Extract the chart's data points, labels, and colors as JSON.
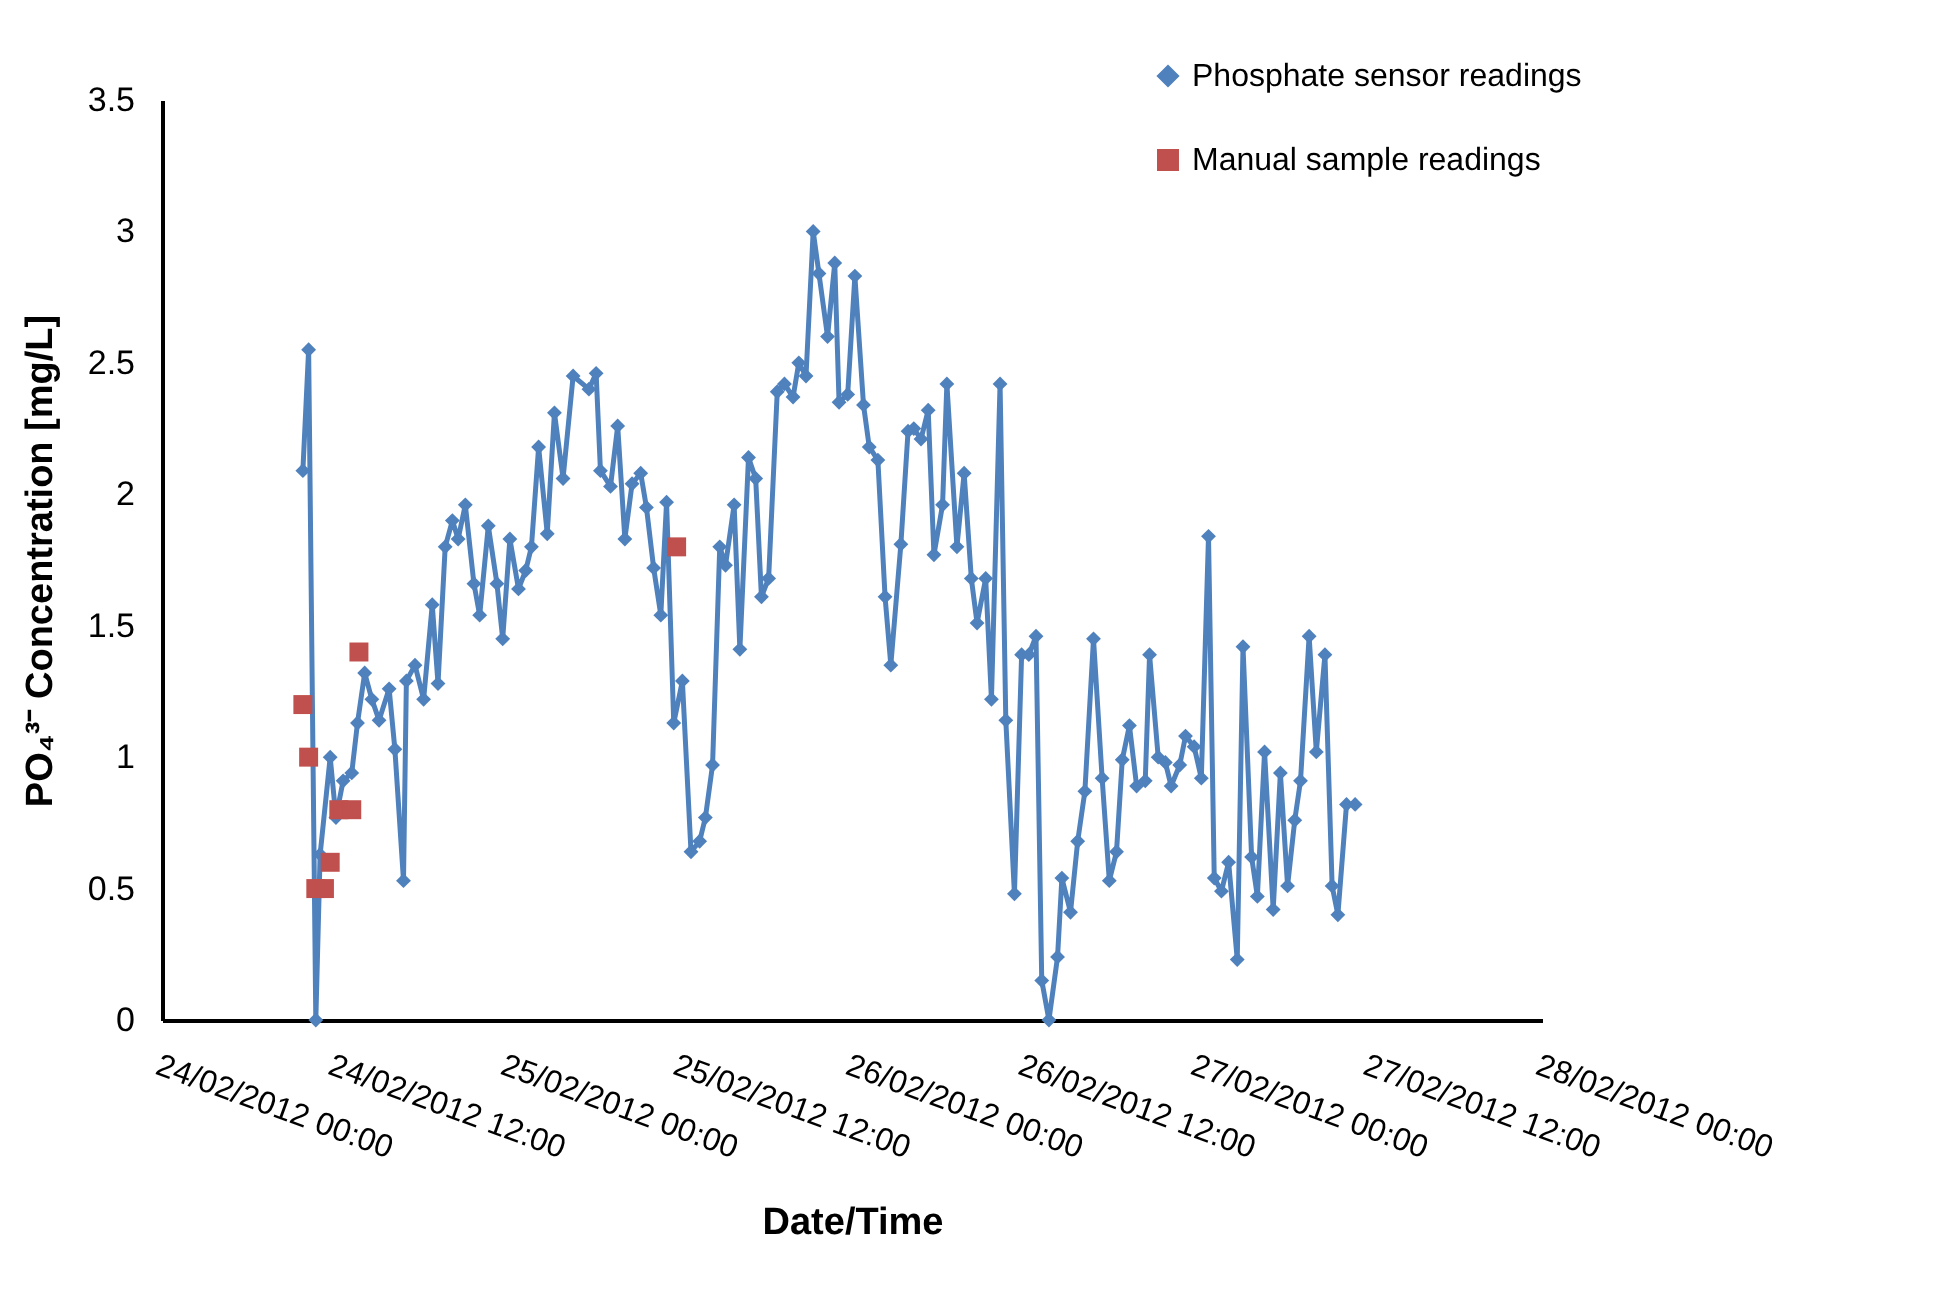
{
  "chart_data": {
    "type": "line",
    "xlabel": "Date/Time",
    "ylabel": "PO₄³⁻ Concentration [mg/L]",
    "xlim": [
      "2012-02-24T00:00",
      "2012-02-28T00:00"
    ],
    "xticks": [
      {
        "value": "2012-02-24T00:00",
        "label": "24/02/2012 00:00"
      },
      {
        "value": "2012-02-24T12:00",
        "label": "24/02/2012 12:00"
      },
      {
        "value": "2012-02-25T00:00",
        "label": "25/02/2012 00:00"
      },
      {
        "value": "2012-02-25T12:00",
        "label": "25/02/2012 12:00"
      },
      {
        "value": "2012-02-26T00:00",
        "label": "26/02/2012 00:00"
      },
      {
        "value": "2012-02-26T12:00",
        "label": "26/02/2012 12:00"
      },
      {
        "value": "2012-02-27T00:00",
        "label": "27/02/2012 00:00"
      },
      {
        "value": "2012-02-27T12:00",
        "label": "27/02/2012 12:00"
      },
      {
        "value": "2012-02-28T00:00",
        "label": "28/02/2012 00:00"
      }
    ],
    "ylim": [
      0,
      3.5
    ],
    "yticks": [
      0,
      0.5,
      1,
      1.5,
      2,
      2.5,
      3,
      3.5
    ],
    "grid": false,
    "legend": "top right",
    "series": [
      {
        "name": "Phosphate sensor readings",
        "marker": "diamond",
        "line_style": "solid",
        "color": "#4f81bd",
        "x": [
          "2012-02-24T09:48",
          "2012-02-24T10:12",
          "2012-02-24T10:42",
          "2012-02-24T11:00",
          "2012-02-24T11:42",
          "2012-02-24T12:06",
          "2012-02-24T12:36",
          "2012-02-24T13:12",
          "2012-02-24T13:36",
          "2012-02-24T14:06",
          "2012-02-24T14:36",
          "2012-02-24T15:06",
          "2012-02-24T15:48",
          "2012-02-24T16:12",
          "2012-02-24T16:48",
          "2012-02-24T17:00",
          "2012-02-24T17:36",
          "2012-02-24T18:12",
          "2012-02-24T18:48",
          "2012-02-24T19:12",
          "2012-02-24T19:42",
          "2012-02-24T20:12",
          "2012-02-24T20:36",
          "2012-02-24T21:06",
          "2012-02-24T21:42",
          "2012-02-24T22:06",
          "2012-02-24T22:42",
          "2012-02-24T23:18",
          "2012-02-24T23:42",
          "2012-02-25T00:12",
          "2012-02-25T00:48",
          "2012-02-25T01:18",
          "2012-02-25T01:42",
          "2012-02-25T02:12",
          "2012-02-25T02:48",
          "2012-02-25T03:18",
          "2012-02-25T03:54",
          "2012-02-25T04:36",
          "2012-02-25T05:42",
          "2012-02-25T06:12",
          "2012-02-25T06:30",
          "2012-02-25T07:12",
          "2012-02-25T07:42",
          "2012-02-25T08:12",
          "2012-02-25T08:42",
          "2012-02-25T09:18",
          "2012-02-25T09:42",
          "2012-02-25T10:12",
          "2012-02-25T10:42",
          "2012-02-25T11:06",
          "2012-02-25T11:36",
          "2012-02-25T12:12",
          "2012-02-25T12:48",
          "2012-02-25T13:24",
          "2012-02-25T13:48",
          "2012-02-25T14:18",
          "2012-02-25T14:48",
          "2012-02-25T15:12",
          "2012-02-25T15:48",
          "2012-02-25T16:12",
          "2012-02-25T16:48",
          "2012-02-25T17:18",
          "2012-02-25T17:42",
          "2012-02-25T18:12",
          "2012-02-25T18:48",
          "2012-02-25T19:18",
          "2012-02-25T19:54",
          "2012-02-25T20:18",
          "2012-02-25T20:48",
          "2012-02-25T21:18",
          "2012-02-25T21:42",
          "2012-02-25T22:18",
          "2012-02-25T22:48",
          "2012-02-25T23:06",
          "2012-02-25T23:42",
          "2012-02-26T00:12",
          "2012-02-26T00:48",
          "2012-02-26T01:12",
          "2012-02-26T01:48",
          "2012-02-26T02:18",
          "2012-02-26T02:42",
          "2012-02-26T03:24",
          "2012-02-26T03:54",
          "2012-02-26T04:18",
          "2012-02-26T04:48",
          "2012-02-26T05:18",
          "2012-02-26T05:42",
          "2012-02-26T06:18",
          "2012-02-26T06:36",
          "2012-02-26T07:18",
          "2012-02-26T07:48",
          "2012-02-26T08:18",
          "2012-02-26T08:42",
          "2012-02-26T09:18",
          "2012-02-26T09:42",
          "2012-02-26T10:18",
          "2012-02-26T10:42",
          "2012-02-26T11:18",
          "2012-02-26T11:48",
          "2012-02-26T12:18",
          "2012-02-26T12:48",
          "2012-02-26T13:12",
          "2012-02-26T13:42",
          "2012-02-26T14:18",
          "2012-02-26T14:36",
          "2012-02-26T15:12",
          "2012-02-26T15:42",
          "2012-02-26T16:12",
          "2012-02-26T16:48",
          "2012-02-26T17:24",
          "2012-02-26T17:54",
          "2012-02-26T18:24",
          "2012-02-26T18:48",
          "2012-02-26T19:18",
          "2012-02-26T19:48",
          "2012-02-26T20:24",
          "2012-02-26T20:42",
          "2012-02-26T21:18",
          "2012-02-26T21:48",
          "2012-02-26T22:12",
          "2012-02-26T22:48",
          "2012-02-26T23:12",
          "2012-02-26T23:48",
          "2012-02-27T00:18",
          "2012-02-27T00:48",
          "2012-02-27T01:12",
          "2012-02-27T01:42",
          "2012-02-27T02:12",
          "2012-02-27T02:48",
          "2012-02-27T03:12",
          "2012-02-27T03:48",
          "2012-02-27T04:12",
          "2012-02-27T04:42",
          "2012-02-27T05:18",
          "2012-02-27T05:48",
          "2012-02-27T06:18",
          "2012-02-27T06:48",
          "2012-02-27T07:12",
          "2012-02-27T07:48",
          "2012-02-27T08:18",
          "2012-02-27T08:54",
          "2012-02-27T09:24",
          "2012-02-27T09:48",
          "2012-02-27T10:24",
          "2012-02-27T11:00"
        ],
        "values": [
          2.09,
          2.55,
          0,
          0.63,
          1.0,
          0.77,
          0.91,
          0.94,
          1.13,
          1.32,
          1.22,
          1.14,
          1.26,
          1.03,
          0.53,
          1.29,
          1.35,
          1.22,
          1.58,
          1.28,
          1.8,
          1.9,
          1.83,
          1.96,
          1.66,
          1.54,
          1.88,
          1.66,
          1.45,
          1.83,
          1.64,
          1.71,
          1.8,
          2.18,
          1.85,
          2.31,
          2.06,
          2.45,
          2.4,
          2.46,
          2.09,
          2.03,
          2.26,
          1.83,
          2.04,
          2.08,
          1.95,
          1.72,
          1.54,
          1.97,
          1.13,
          1.29,
          0.64,
          0.68,
          0.77,
          0.97,
          1.8,
          1.73,
          1.96,
          1.41,
          2.14,
          2.06,
          1.61,
          1.68,
          2.39,
          2.42,
          2.37,
          2.5,
          2.45,
          3.0,
          2.84,
          2.6,
          2.88,
          2.35,
          2.38,
          2.83,
          2.34,
          2.18,
          2.13,
          1.61,
          1.35,
          1.81,
          2.24,
          2.25,
          2.21,
          2.32,
          1.77,
          1.96,
          2.42,
          1.8,
          2.08,
          1.68,
          1.51,
          1.68,
          1.22,
          2.42,
          1.14,
          0.48,
          1.39,
          1.39,
          1.46,
          0.15,
          0,
          0.24,
          0.54,
          0.41,
          0.68,
          0.87,
          1.45,
          0.92,
          0.53,
          0.64,
          0.99,
          1.12,
          0.89,
          0.91,
          1.39,
          1.0,
          0.98,
          0.89,
          0.97,
          1.08,
          1.04,
          0.92,
          1.84,
          0.54,
          0.49,
          0.6,
          0.23,
          1.42,
          0.62,
          0.47,
          1.02,
          0.42,
          0.94,
          0.51,
          0.76,
          0.91,
          1.46,
          1.02,
          1.39,
          0.51,
          0.4,
          0.82,
          0.82
        ]
      },
      {
        "name": "Manual sample readings",
        "type": "scatter",
        "marker": "square",
        "color": "#c0504d",
        "x": [
          "2012-02-24T09:48",
          "2012-02-24T10:12",
          "2012-02-24T10:42",
          "2012-02-24T11:18",
          "2012-02-24T11:42",
          "2012-02-24T12:18",
          "2012-02-24T13:12",
          "2012-02-24T13:42",
          "2012-02-25T11:48"
        ],
        "values": [
          1.2,
          1.0,
          0.5,
          0.5,
          0.6,
          0.8,
          0.8,
          1.4,
          1.8
        ]
      }
    ]
  }
}
